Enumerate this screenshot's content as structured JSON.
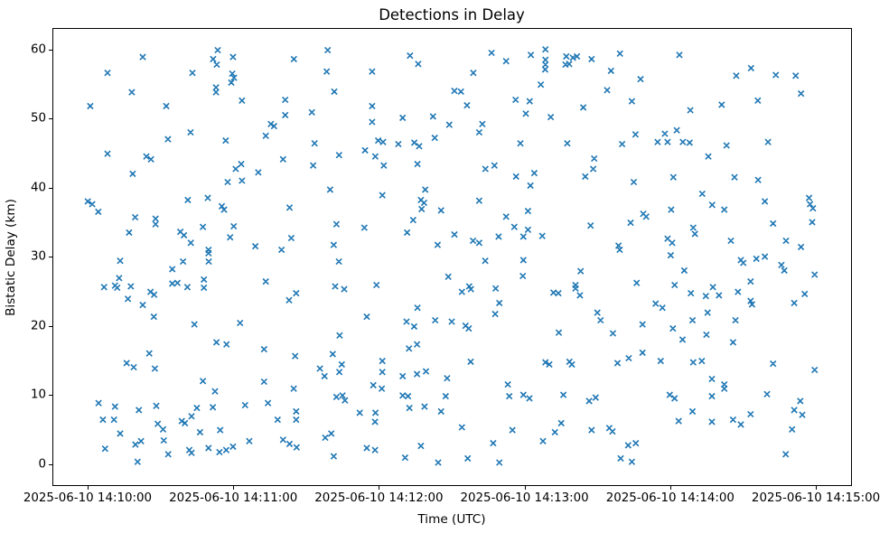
{
  "figure": {
    "title": "Detections in Delay",
    "xlabel": "Time (UTC)",
    "ylabel": "Bistatic Delay (km)"
  },
  "chart_data": {
    "type": "scatter",
    "title": "Detections in Delay",
    "xlabel": "Time (UTC)",
    "ylabel": "Bistatic Delay (km)",
    "marker": "x",
    "marker_color": "#1f77b4",
    "axis_color": "#000000",
    "grid": false,
    "legend_position": "none",
    "x_unit": "seconds after 2025-06-10 14:10:00",
    "xlim_seconds": [
      -14.5,
      314.5
    ],
    "ylim": [
      -3.2,
      63.1
    ],
    "x_ticks_seconds": [
      0,
      60,
      120,
      180,
      240,
      300
    ],
    "x_tick_labels": [
      "2025-06-10 14:10:00",
      "2025-06-10 14:11:00",
      "2025-06-10 14:12:00",
      "2025-06-10 14:13:00",
      "2025-06-10 14:14:00",
      "2025-06-10 14:15:00"
    ],
    "y_ticks": [
      0,
      10,
      20,
      30,
      40,
      50,
      60
    ],
    "points": [
      [
        22.7,
        58.9
      ],
      [
        8.2,
        56.6
      ],
      [
        53.6,
        59.9
      ],
      [
        51.7,
        58.6
      ],
      [
        53.2,
        57.8
      ],
      [
        59.9,
        58.9
      ],
      [
        43.2,
        56.6
      ],
      [
        59.6,
        56.5
      ],
      [
        60.3,
        55.9
      ],
      [
        59.2,
        55.2
      ],
      [
        52.9,
        54.5
      ],
      [
        52.9,
        53.8
      ],
      [
        18.2,
        53.8
      ],
      [
        1.1,
        51.8
      ],
      [
        32.4,
        51.8
      ],
      [
        63.6,
        52.6
      ],
      [
        42.4,
        48.0
      ],
      [
        33.1,
        47.0
      ],
      [
        56.9,
        46.8
      ],
      [
        8.2,
        44.9
      ],
      [
        24.2,
        44.5
      ],
      [
        26.1,
        44.1
      ],
      [
        18.6,
        42.0
      ],
      [
        63.3,
        43.4
      ],
      [
        61.0,
        42.7
      ],
      [
        57.7,
        40.8
      ],
      [
        63.6,
        41.0
      ],
      [
        98.9,
        59.9
      ],
      [
        85.0,
        58.6
      ],
      [
        132.8,
        59.1
      ],
      [
        136.2,
        57.9
      ],
      [
        98.5,
        56.8
      ],
      [
        117.2,
        56.8
      ],
      [
        101.6,
        53.9
      ],
      [
        81.4,
        52.7
      ],
      [
        117.2,
        51.8
      ],
      [
        81.4,
        50.5
      ],
      [
        92.4,
        50.9
      ],
      [
        142.3,
        50.3
      ],
      [
        129.8,
        50.1
      ],
      [
        117.2,
        49.5
      ],
      [
        75.5,
        49.2
      ],
      [
        76.8,
        48.9
      ],
      [
        149.0,
        49.1
      ],
      [
        73.4,
        47.5
      ],
      [
        143.0,
        47.2
      ],
      [
        93.5,
        46.4
      ],
      [
        119.7,
        46.8
      ],
      [
        121.7,
        46.6
      ],
      [
        128.0,
        46.3
      ],
      [
        134.6,
        46.5
      ],
      [
        136.6,
        46.0
      ],
      [
        114.3,
        45.4
      ],
      [
        118.5,
        44.5
      ],
      [
        103.6,
        44.7
      ],
      [
        80.5,
        44.1
      ],
      [
        92.9,
        43.2
      ],
      [
        122.0,
        43.2
      ],
      [
        135.9,
        43.4
      ],
      [
        70.3,
        42.2
      ],
      [
        166.4,
        59.5
      ],
      [
        172.4,
        58.3
      ],
      [
        182.6,
        59.2
      ],
      [
        188.6,
        60.0
      ],
      [
        188.6,
        58.5
      ],
      [
        188.6,
        57.8
      ],
      [
        188.5,
        57.1
      ],
      [
        197.2,
        59.0
      ],
      [
        199.9,
        58.8
      ],
      [
        201.6,
        59.0
      ],
      [
        196.9,
        57.8
      ],
      [
        198.4,
        57.9
      ],
      [
        207.6,
        58.6
      ],
      [
        219.3,
        59.4
      ],
      [
        215.6,
        56.9
      ],
      [
        227.8,
        55.7
      ],
      [
        158.9,
        56.6
      ],
      [
        186.7,
        54.9
      ],
      [
        151.1,
        54.0
      ],
      [
        153.8,
        53.9
      ],
      [
        214.0,
        54.1
      ],
      [
        156.3,
        51.9
      ],
      [
        176.3,
        52.7
      ],
      [
        182.1,
        52.5
      ],
      [
        224.2,
        52.5
      ],
      [
        204.2,
        51.6
      ],
      [
        180.5,
        50.7
      ],
      [
        190.8,
        50.2
      ],
      [
        162.6,
        49.2
      ],
      [
        161.3,
        48.0
      ],
      [
        225.7,
        47.7
      ],
      [
        178.3,
        46.4
      ],
      [
        197.6,
        46.4
      ],
      [
        220.2,
        46.3
      ],
      [
        208.7,
        44.2
      ],
      [
        167.6,
        43.2
      ],
      [
        163.9,
        42.7
      ],
      [
        176.5,
        41.6
      ],
      [
        184.0,
        42.1
      ],
      [
        208.3,
        42.7
      ],
      [
        205.0,
        41.6
      ],
      [
        225.0,
        40.8
      ],
      [
        243.8,
        59.2
      ],
      [
        273.3,
        57.3
      ],
      [
        267.2,
        56.2
      ],
      [
        283.5,
        56.3
      ],
      [
        291.7,
        56.2
      ],
      [
        293.9,
        53.6
      ],
      [
        276.1,
        52.6
      ],
      [
        261.2,
        52.0
      ],
      [
        248.3,
        51.2
      ],
      [
        242.7,
        48.3
      ],
      [
        237.8,
        47.8
      ],
      [
        234.8,
        46.6
      ],
      [
        238.9,
        46.6
      ],
      [
        245.2,
        46.6
      ],
      [
        248.0,
        46.5
      ],
      [
        263.2,
        46.1
      ],
      [
        280.3,
        46.6
      ],
      [
        255.7,
        44.5
      ],
      [
        241.3,
        41.5
      ],
      [
        266.5,
        41.5
      ],
      [
        276.2,
        41.1
      ],
      [
        0.1,
        38.0
      ],
      [
        1.9,
        37.6
      ],
      [
        4.4,
        36.5
      ],
      [
        19.6,
        35.7
      ],
      [
        28.0,
        35.5
      ],
      [
        28.0,
        34.7
      ],
      [
        17.1,
        33.5
      ],
      [
        41.3,
        38.2
      ],
      [
        49.5,
        38.5
      ],
      [
        55.3,
        37.3
      ],
      [
        56.2,
        36.8
      ],
      [
        38.2,
        33.6
      ],
      [
        39.7,
        33.1
      ],
      [
        42.5,
        32.0
      ],
      [
        47.5,
        34.3
      ],
      [
        60.2,
        34.4
      ],
      [
        58.7,
        32.8
      ],
      [
        49.8,
        31.0
      ],
      [
        49.8,
        30.5
      ],
      [
        49.9,
        29.3
      ],
      [
        39.3,
        29.3
      ],
      [
        34.9,
        28.2
      ],
      [
        13.4,
        29.4
      ],
      [
        13.0,
        26.9
      ],
      [
        6.8,
        25.6
      ],
      [
        11.3,
        25.8
      ],
      [
        12.2,
        25.5
      ],
      [
        17.8,
        25.7
      ],
      [
        34.9,
        26.1
      ],
      [
        37.0,
        26.2
      ],
      [
        41.1,
        25.6
      ],
      [
        47.9,
        26.7
      ],
      [
        47.9,
        25.5
      ],
      [
        25.9,
        24.9
      ],
      [
        27.4,
        24.5
      ],
      [
        16.6,
        23.9
      ],
      [
        22.7,
        23.0
      ],
      [
        27.3,
        21.3
      ],
      [
        44.0,
        20.2
      ],
      [
        62.8,
        20.4
      ],
      [
        99.9,
        39.7
      ],
      [
        83.2,
        37.1
      ],
      [
        121.4,
        38.9
      ],
      [
        139.1,
        39.7
      ],
      [
        137.3,
        38.2
      ],
      [
        138.6,
        37.8
      ],
      [
        137.6,
        36.9
      ],
      [
        145.6,
        36.7
      ],
      [
        134.1,
        35.3
      ],
      [
        131.6,
        33.5
      ],
      [
        102.5,
        34.7
      ],
      [
        114.0,
        34.2
      ],
      [
        83.9,
        32.7
      ],
      [
        79.9,
        31.0
      ],
      [
        69.1,
        31.5
      ],
      [
        101.4,
        31.7
      ],
      [
        144.2,
        31.7
      ],
      [
        103.5,
        29.3
      ],
      [
        73.4,
        26.4
      ],
      [
        148.6,
        27.1
      ],
      [
        102.0,
        25.7
      ],
      [
        105.7,
        25.3
      ],
      [
        119.0,
        25.9
      ],
      [
        85.9,
        24.7
      ],
      [
        83.0,
        23.7
      ],
      [
        135.9,
        22.6
      ],
      [
        115.0,
        21.3
      ],
      [
        131.4,
        20.6
      ],
      [
        134.5,
        19.9
      ],
      [
        143.2,
        20.8
      ],
      [
        182.4,
        40.3
      ],
      [
        161.3,
        38.1
      ],
      [
        172.4,
        35.8
      ],
      [
        181.4,
        36.6
      ],
      [
        175.8,
        34.3
      ],
      [
        181.4,
        33.9
      ],
      [
        179.5,
        32.9
      ],
      [
        187.3,
        33.0
      ],
      [
        169.3,
        32.9
      ],
      [
        151.1,
        33.2
      ],
      [
        158.8,
        32.3
      ],
      [
        161.3,
        32.0
      ],
      [
        207.2,
        34.5
      ],
      [
        223.7,
        34.9
      ],
      [
        228.9,
        36.2
      ],
      [
        230.1,
        35.8
      ],
      [
        218.7,
        31.6
      ],
      [
        219.2,
        31.0
      ],
      [
        163.8,
        29.4
      ],
      [
        179.5,
        29.5
      ],
      [
        179.3,
        27.2
      ],
      [
        203.1,
        27.9
      ],
      [
        226.2,
        26.2
      ],
      [
        157.2,
        25.7
      ],
      [
        157.9,
        25.3
      ],
      [
        154.2,
        24.9
      ],
      [
        168.1,
        25.4
      ],
      [
        201.0,
        25.9
      ],
      [
        201.0,
        25.4
      ],
      [
        191.9,
        24.8
      ],
      [
        193.9,
        24.7
      ],
      [
        202.8,
        24.4
      ],
      [
        169.6,
        23.3
      ],
      [
        167.9,
        21.7
      ],
      [
        210.0,
        21.9
      ],
      [
        211.3,
        20.8
      ],
      [
        228.6,
        20.2
      ],
      [
        155.7,
        20.0
      ],
      [
        157.0,
        19.6
      ],
      [
        150.0,
        20.6
      ],
      [
        194.1,
        19.0
      ],
      [
        216.4,
        18.9
      ],
      [
        253.2,
        39.1
      ],
      [
        257.3,
        37.5
      ],
      [
        262.3,
        36.8
      ],
      [
        240.4,
        36.8
      ],
      [
        279.0,
        38.0
      ],
      [
        297.2,
        38.5
      ],
      [
        297.6,
        37.6
      ],
      [
        298.8,
        37.0
      ],
      [
        298.5,
        35.0
      ],
      [
        282.4,
        34.8
      ],
      [
        249.5,
        34.2
      ],
      [
        250.2,
        33.3
      ],
      [
        238.9,
        32.6
      ],
      [
        240.8,
        32.0
      ],
      [
        265.0,
        32.3
      ],
      [
        287.7,
        32.3
      ],
      [
        293.9,
        31.4
      ],
      [
        240.2,
        30.2
      ],
      [
        269.1,
        29.5
      ],
      [
        270.1,
        29.1
      ],
      [
        275.5,
        29.7
      ],
      [
        279.0,
        30.0
      ],
      [
        285.8,
        28.8
      ],
      [
        287.0,
        28.0
      ],
      [
        245.8,
        28.0
      ],
      [
        299.5,
        27.4
      ],
      [
        241.8,
        25.9
      ],
      [
        273.1,
        26.4
      ],
      [
        257.6,
        25.6
      ],
      [
        248.5,
        24.7
      ],
      [
        254.7,
        24.3
      ],
      [
        260.1,
        24.4
      ],
      [
        267.9,
        24.9
      ],
      [
        273.1,
        23.6
      ],
      [
        273.7,
        23.1
      ],
      [
        234.0,
        23.2
      ],
      [
        236.8,
        22.6
      ],
      [
        291.1,
        23.3
      ],
      [
        295.4,
        24.6
      ],
      [
        255.4,
        21.9
      ],
      [
        266.9,
        20.8
      ],
      [
        241.1,
        19.6
      ],
      [
        249.2,
        20.8
      ],
      [
        254.9,
        18.7
      ],
      [
        53.1,
        17.6
      ],
      [
        57.2,
        17.3
      ],
      [
        25.4,
        16.0
      ],
      [
        16.1,
        14.6
      ],
      [
        19.0,
        14.0
      ],
      [
        27.7,
        13.8
      ],
      [
        47.5,
        12.0
      ],
      [
        52.5,
        10.5
      ],
      [
        4.5,
        8.8
      ],
      [
        11.3,
        8.3
      ],
      [
        21.1,
        7.8
      ],
      [
        28.3,
        8.4
      ],
      [
        45.0,
        8.1
      ],
      [
        51.6,
        8.2
      ],
      [
        64.9,
        8.5
      ],
      [
        6.3,
        6.4
      ],
      [
        10.9,
        6.4
      ],
      [
        28.9,
        5.8
      ],
      [
        31.1,
        5.0
      ],
      [
        38.8,
        6.2
      ],
      [
        40.1,
        5.9
      ],
      [
        42.8,
        6.9
      ],
      [
        13.4,
        4.4
      ],
      [
        46.3,
        4.6
      ],
      [
        54.6,
        4.9
      ],
      [
        19.7,
        2.8
      ],
      [
        22.0,
        3.3
      ],
      [
        31.4,
        3.4
      ],
      [
        7.2,
        2.2
      ],
      [
        33.2,
        1.4
      ],
      [
        41.9,
        2.0
      ],
      [
        42.8,
        1.6
      ],
      [
        49.8,
        2.3
      ],
      [
        54.3,
        1.7
      ],
      [
        57.1,
        2.0
      ],
      [
        59.9,
        2.5
      ],
      [
        66.6,
        3.3
      ],
      [
        20.6,
        0.3
      ],
      [
        103.8,
        18.6
      ],
      [
        72.7,
        16.6
      ],
      [
        85.5,
        15.6
      ],
      [
        101.0,
        15.9
      ],
      [
        104.7,
        14.4
      ],
      [
        95.7,
        13.8
      ],
      [
        97.6,
        12.7
      ],
      [
        103.7,
        13.3
      ],
      [
        121.4,
        14.9
      ],
      [
        121.4,
        13.3
      ],
      [
        132.4,
        16.7
      ],
      [
        135.7,
        17.3
      ],
      [
        129.8,
        12.7
      ],
      [
        135.7,
        13.0
      ],
      [
        139.4,
        13.4
      ],
      [
        148.1,
        12.4
      ],
      [
        72.7,
        11.9
      ],
      [
        84.9,
        10.9
      ],
      [
        117.7,
        11.4
      ],
      [
        121.2,
        10.9
      ],
      [
        74.3,
        8.8
      ],
      [
        102.5,
        9.7
      ],
      [
        105.0,
        9.9
      ],
      [
        106.0,
        9.2
      ],
      [
        129.8,
        9.9
      ],
      [
        132.0,
        9.8
      ],
      [
        147.5,
        9.8
      ],
      [
        132.6,
        8.1
      ],
      [
        138.8,
        8.3
      ],
      [
        145.6,
        7.6
      ],
      [
        112.1,
        7.4
      ],
      [
        118.6,
        7.4
      ],
      [
        118.4,
        6.1
      ],
      [
        85.9,
        7.6
      ],
      [
        85.9,
        6.4
      ],
      [
        78.3,
        6.4
      ],
      [
        97.9,
        3.8
      ],
      [
        100.4,
        4.4
      ],
      [
        80.5,
        3.5
      ],
      [
        83.2,
        2.9
      ],
      [
        86.1,
        2.4
      ],
      [
        115.0,
        2.3
      ],
      [
        118.4,
        2.0
      ],
      [
        101.4,
        1.1
      ],
      [
        130.8,
        0.9
      ],
      [
        137.3,
        2.6
      ],
      [
        144.4,
        0.2
      ],
      [
        157.8,
        14.8
      ],
      [
        188.6,
        14.7
      ],
      [
        190.2,
        14.4
      ],
      [
        198.5,
        14.8
      ],
      [
        199.5,
        14.4
      ],
      [
        218.3,
        14.6
      ],
      [
        222.9,
        15.3
      ],
      [
        228.6,
        16.1
      ],
      [
        173.1,
        11.5
      ],
      [
        173.7,
        9.8
      ],
      [
        179.5,
        10.0
      ],
      [
        182.0,
        9.5
      ],
      [
        196.0,
        10.0
      ],
      [
        206.6,
        9.1
      ],
      [
        209.3,
        9.6
      ],
      [
        154.2,
        5.3
      ],
      [
        175.0,
        4.9
      ],
      [
        195.1,
        5.9
      ],
      [
        192.5,
        4.6
      ],
      [
        187.6,
        3.3
      ],
      [
        207.6,
        4.9
      ],
      [
        214.9,
        5.2
      ],
      [
        216.2,
        4.7
      ],
      [
        167.1,
        3.0
      ],
      [
        222.7,
        2.7
      ],
      [
        225.8,
        3.0
      ],
      [
        156.6,
        0.8
      ],
      [
        169.6,
        0.2
      ],
      [
        219.6,
        0.8
      ],
      [
        224.2,
        0.3
      ],
      [
        245.1,
        18.0
      ],
      [
        265.9,
        17.6
      ],
      [
        236.1,
        14.9
      ],
      [
        249.5,
        14.7
      ],
      [
        253.0,
        14.9
      ],
      [
        282.4,
        14.5
      ],
      [
        299.5,
        13.6
      ],
      [
        257.2,
        12.3
      ],
      [
        262.3,
        11.5
      ],
      [
        262.3,
        10.9
      ],
      [
        257.2,
        9.8
      ],
      [
        239.8,
        10.0
      ],
      [
        241.8,
        9.5
      ],
      [
        279.9,
        10.1
      ],
      [
        293.6,
        9.1
      ],
      [
        291.1,
        7.8
      ],
      [
        294.4,
        7.1
      ],
      [
        249.2,
        7.6
      ],
      [
        243.5,
        6.2
      ],
      [
        257.2,
        6.1
      ],
      [
        265.9,
        6.4
      ],
      [
        269.1,
        5.7
      ],
      [
        273.1,
        7.2
      ],
      [
        290.2,
        5.0
      ],
      [
        287.6,
        1.4
      ]
    ]
  }
}
